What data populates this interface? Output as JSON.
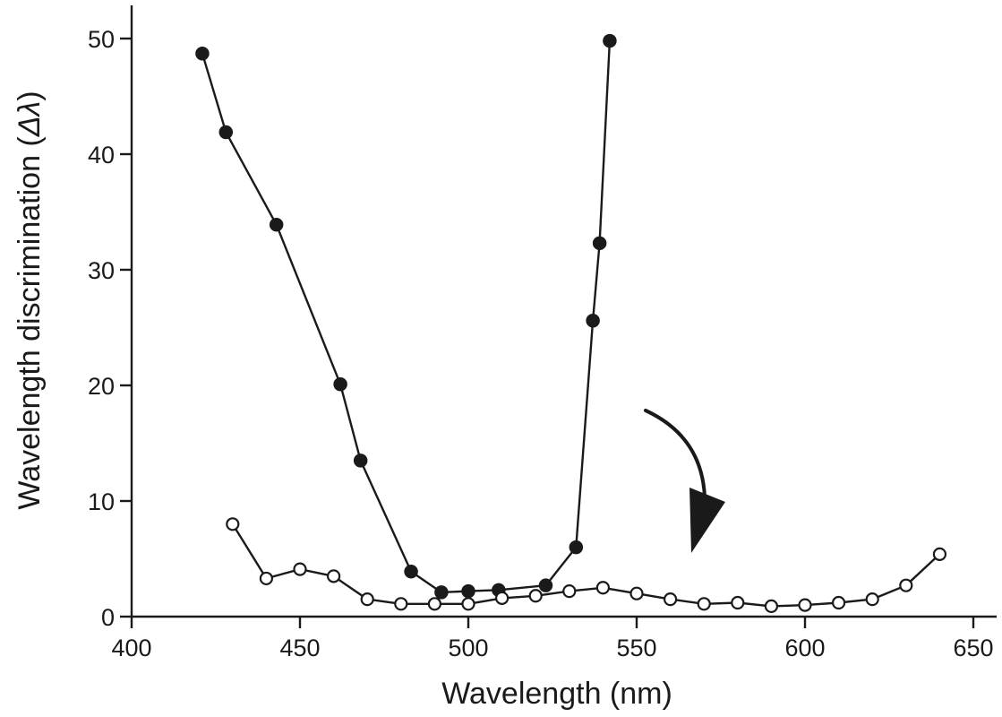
{
  "chart_data": {
    "type": "line",
    "title": "",
    "xlabel": "Wavelength (nm)",
    "ylabel_prefix": "Wavelength discrimination (",
    "ylabel_symbol": "Δλ",
    "ylabel_suffix": ")",
    "xlim": [
      400,
      650
    ],
    "ylim": [
      0,
      50
    ],
    "xticks": [
      400,
      450,
      500,
      550,
      600,
      650
    ],
    "yticks": [
      0,
      10,
      20,
      30,
      40,
      50
    ],
    "grid": false,
    "legend": "none",
    "annotation": "curved-arrow-pointing-down",
    "series": [
      {
        "marker": "filled-circle",
        "color": "#1a1a1a",
        "x": [
          421,
          428,
          443,
          462,
          468,
          483,
          492,
          500,
          509,
          523,
          532,
          537,
          539,
          542
        ],
        "y": [
          48.7,
          41.9,
          33.9,
          20.1,
          13.5,
          3.9,
          2.1,
          2.2,
          2.3,
          2.7,
          6.0,
          25.6,
          32.3,
          49.8
        ]
      },
      {
        "marker": "open-circle",
        "color": "#1a1a1a",
        "x": [
          430,
          440,
          450,
          460,
          470,
          480,
          490,
          500,
          510,
          520,
          530,
          540,
          550,
          560,
          570,
          580,
          590,
          600,
          610,
          620,
          630,
          640
        ],
        "y": [
          8.0,
          3.3,
          4.1,
          3.5,
          1.5,
          1.1,
          1.1,
          1.1,
          1.6,
          1.8,
          2.2,
          2.5,
          2.0,
          1.5,
          1.1,
          1.2,
          0.9,
          1.0,
          1.2,
          1.5,
          2.7,
          5.4
        ]
      }
    ]
  }
}
